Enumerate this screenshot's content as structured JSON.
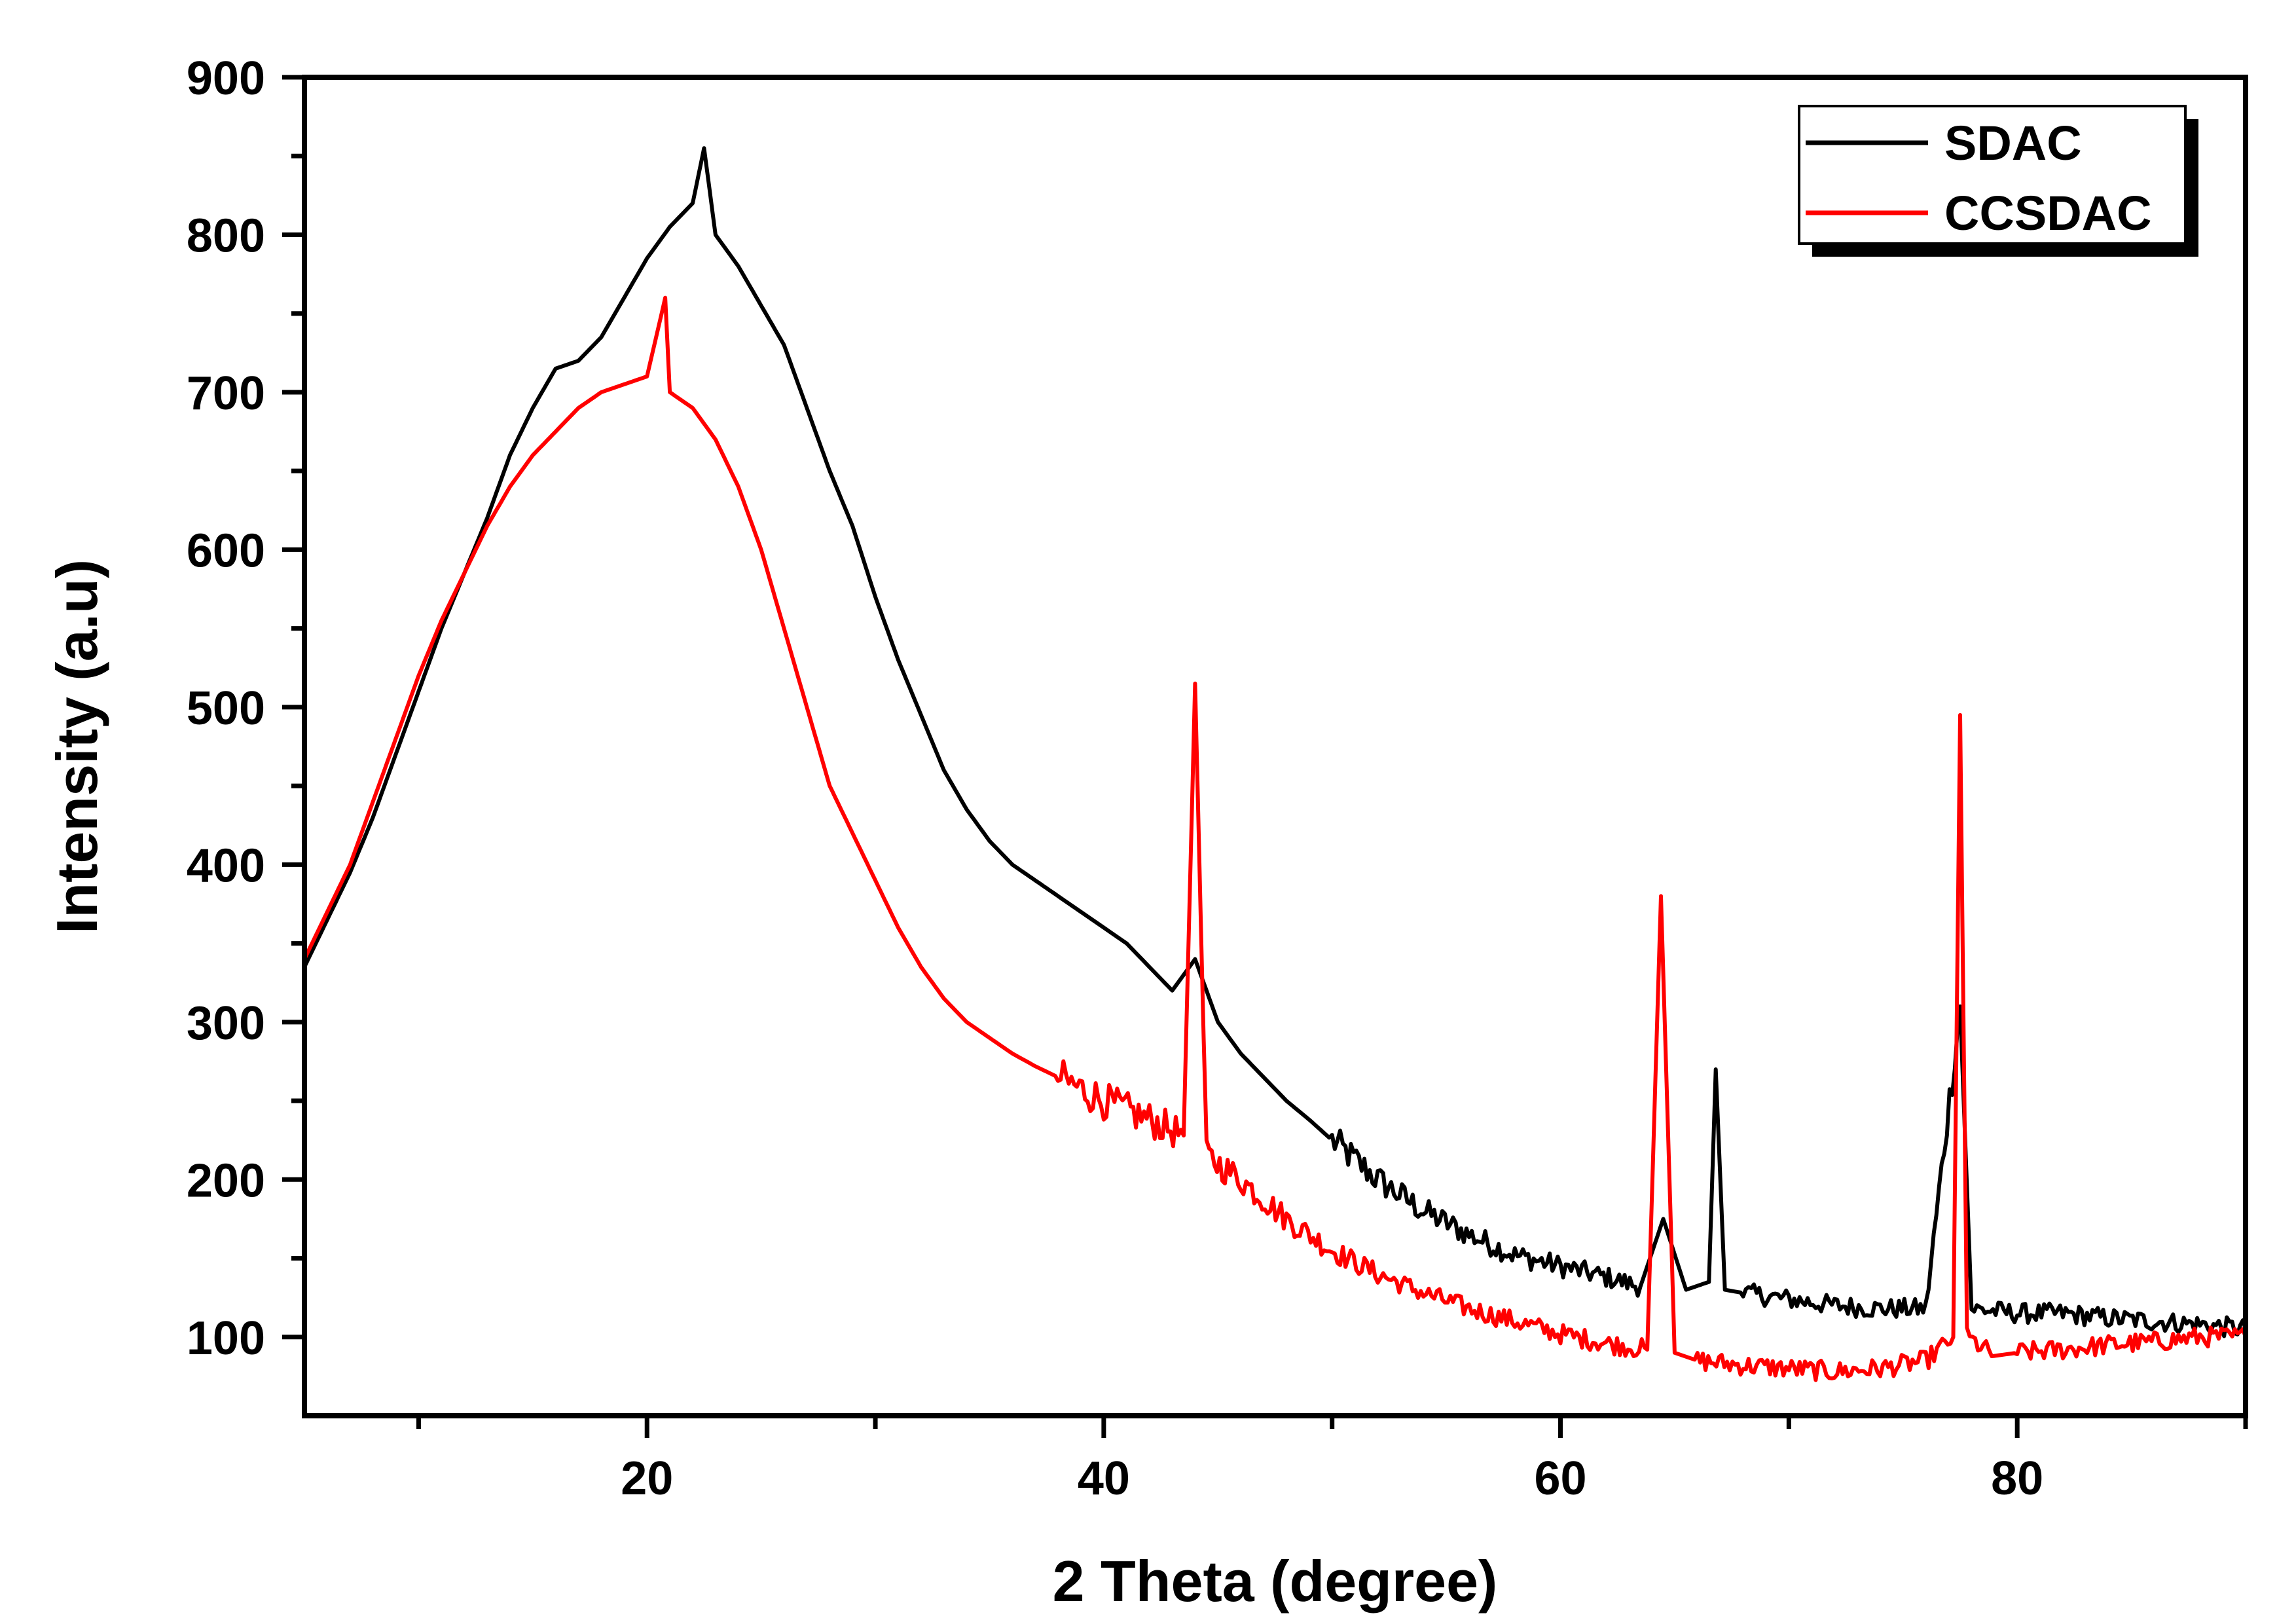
{
  "chart_data": {
    "type": "line",
    "title": "",
    "xlabel": "2 Theta (degree)",
    "ylabel": "Intensity (a.u)",
    "xlim": [
      5,
      90
    ],
    "ylim": [
      50,
      900
    ],
    "x_ticks": [
      20,
      40,
      60,
      80
    ],
    "x_tick_labels": [
      "20",
      "40",
      "60",
      "80"
    ],
    "y_ticks": [
      100,
      200,
      300,
      400,
      500,
      600,
      700,
      800,
      900
    ],
    "y_tick_labels": [
      "100",
      "200",
      "300",
      "400",
      "500",
      "600",
      "700",
      "800",
      "900"
    ],
    "grid": false,
    "legend_position": "top-right",
    "series": [
      {
        "name": "SDAC",
        "color": "#000000",
        "x": [
          5,
          6,
          7,
          8,
          9,
          10,
          11,
          12,
          13,
          14,
          15,
          16,
          17,
          18,
          19,
          20,
          21,
          22,
          22.5,
          23,
          24,
          25,
          26,
          27,
          28,
          29,
          30,
          31,
          32,
          33,
          34,
          35,
          36,
          37,
          38,
          39,
          40,
          41,
          42,
          43,
          44,
          45,
          46,
          47,
          48,
          49,
          50,
          52,
          54,
          56,
          58,
          60,
          62,
          63.5,
          64.5,
          65.5,
          66.5,
          66.8,
          67.2,
          68,
          70,
          72,
          74,
          76,
          77.5,
          78,
          80,
          82,
          84,
          86,
          88,
          90
        ],
        "y": [
          335,
          365,
          395,
          430,
          470,
          510,
          550,
          585,
          620,
          660,
          690,
          715,
          720,
          735,
          760,
          785,
          805,
          820,
          855,
          800,
          780,
          755,
          730,
          690,
          650,
          615,
          570,
          530,
          495,
          460,
          435,
          415,
          400,
          390,
          380,
          370,
          360,
          350,
          335,
          320,
          340,
          300,
          280,
          265,
          250,
          238,
          225,
          200,
          180,
          165,
          152,
          145,
          138,
          132,
          175,
          130,
          135,
          270,
          130,
          128,
          124,
          120,
          118,
          118,
          310,
          118,
          115,
          115,
          112,
          110,
          108,
          105
        ]
      },
      {
        "name": "CCSDAC",
        "color": "#ff0000",
        "x": [
          5,
          6,
          7,
          8,
          9,
          10,
          11,
          12,
          13,
          14,
          15,
          16,
          17,
          18,
          19,
          20,
          20.8,
          21,
          22,
          23,
          24,
          25,
          26,
          27,
          28,
          29,
          30,
          31,
          32,
          33,
          34,
          35,
          36,
          37,
          38,
          40,
          42,
          43.5,
          44,
          44.5,
          46,
          48,
          50,
          52,
          54,
          56,
          58,
          60,
          62,
          63.8,
          64.4,
          65,
          66,
          68,
          70,
          72,
          74,
          76,
          77.2,
          77.5,
          77.8,
          79,
          80,
          82,
          84,
          86,
          88,
          90
        ],
        "y": [
          340,
          370,
          400,
          440,
          480,
          520,
          555,
          585,
          615,
          640,
          660,
          675,
          690,
          700,
          705,
          710,
          760,
          700,
          690,
          670,
          640,
          600,
          550,
          500,
          450,
          420,
          390,
          360,
          335,
          315,
          300,
          290,
          280,
          272,
          265,
          250,
          238,
          228,
          515,
          215,
          200,
          175,
          155,
          140,
          128,
          118,
          110,
          102,
          96,
          92,
          380,
          90,
          85,
          82,
          80,
          78,
          80,
          85,
          100,
          495,
          100,
          88,
          90,
          92,
          95,
          97,
          100,
          100
        ]
      }
    ]
  }
}
